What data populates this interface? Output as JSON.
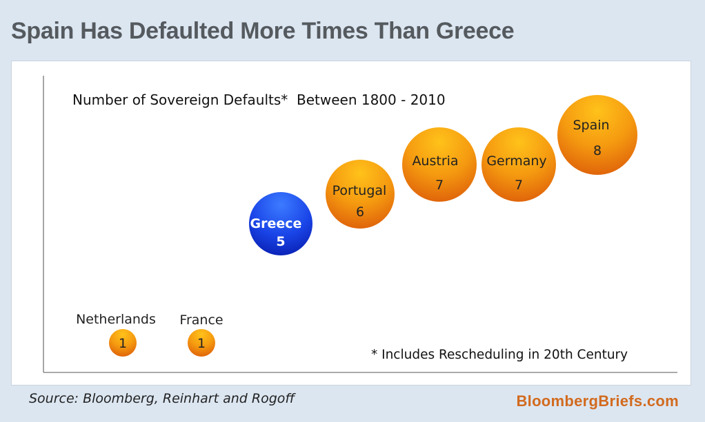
{
  "headline": "Spain Has Defaulted More Times Than Greece",
  "source": "Source: Bloomberg, Reinhart and Rogoff",
  "brand": "BloombergBriefs.com",
  "colors": {
    "background": "#dce6f1",
    "headline": "#555a5f",
    "highlight_bubble": "#1a3fe0",
    "default_bubble": "#f08a10",
    "brand": "#d26a1e"
  },
  "chart_data": {
    "type": "scatter",
    "title": "Number of Sovereign Defaults*  Between 1800 - 2010",
    "footnote": "* Includes Rescheduling in 20th Century",
    "xlabel": "",
    "ylabel": "",
    "series": [
      {
        "points": [
          {
            "label": "Netherlands",
            "value": 1,
            "highlight": false
          },
          {
            "label": "France",
            "value": 1,
            "highlight": false
          },
          {
            "label": "Greece",
            "value": 5,
            "highlight": true
          },
          {
            "label": "Portugal",
            "value": 6,
            "highlight": false
          },
          {
            "label": "Austria",
            "value": 7,
            "highlight": false
          },
          {
            "label": "Germany",
            "value": 7,
            "highlight": false
          },
          {
            "label": "Spain",
            "value": 8,
            "highlight": false
          }
        ]
      }
    ]
  }
}
